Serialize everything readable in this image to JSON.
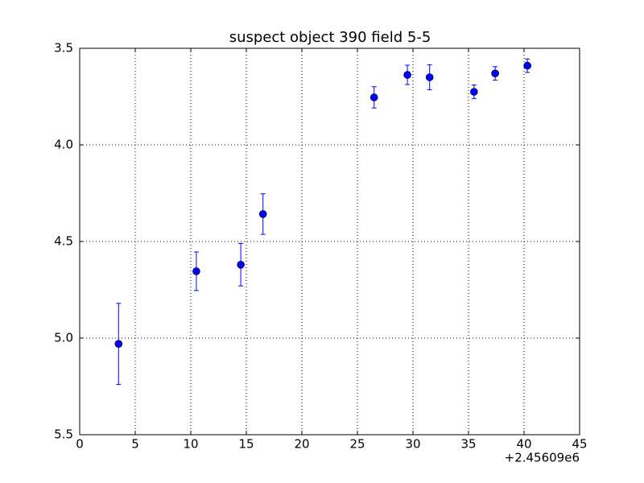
{
  "chart_data": {
    "type": "errorbar",
    "title": "suspect object 390 field 5-5",
    "x_offset_label": "+2.45609e6",
    "x": [
      3.5,
      10.5,
      14.5,
      16.5,
      26.5,
      29.5,
      31.5,
      35.5,
      37.4,
      40.3
    ],
    "series": [
      {
        "color": "#0000ff",
        "values": [
          5.03,
          4.654,
          4.62,
          4.358,
          3.754,
          3.6375,
          3.65,
          3.725,
          3.63,
          3.59
        ],
        "errors": [
          0.21,
          0.1,
          0.11,
          0.105,
          0.055,
          0.05,
          0.065,
          0.035,
          0.035,
          0.035
        ]
      }
    ],
    "xlim": [
      0,
      45
    ],
    "xticks": [
      0,
      5,
      10,
      15,
      20,
      25,
      30,
      35,
      40,
      45
    ],
    "ylim": [
      5.5,
      3.5
    ],
    "yticks": [
      3.5,
      {
        "value": 4,
        "label": "4.0"
      },
      4.5,
      {
        "value": 5,
        "label": "5.0"
      },
      5.5
    ],
    "grid": true
  }
}
